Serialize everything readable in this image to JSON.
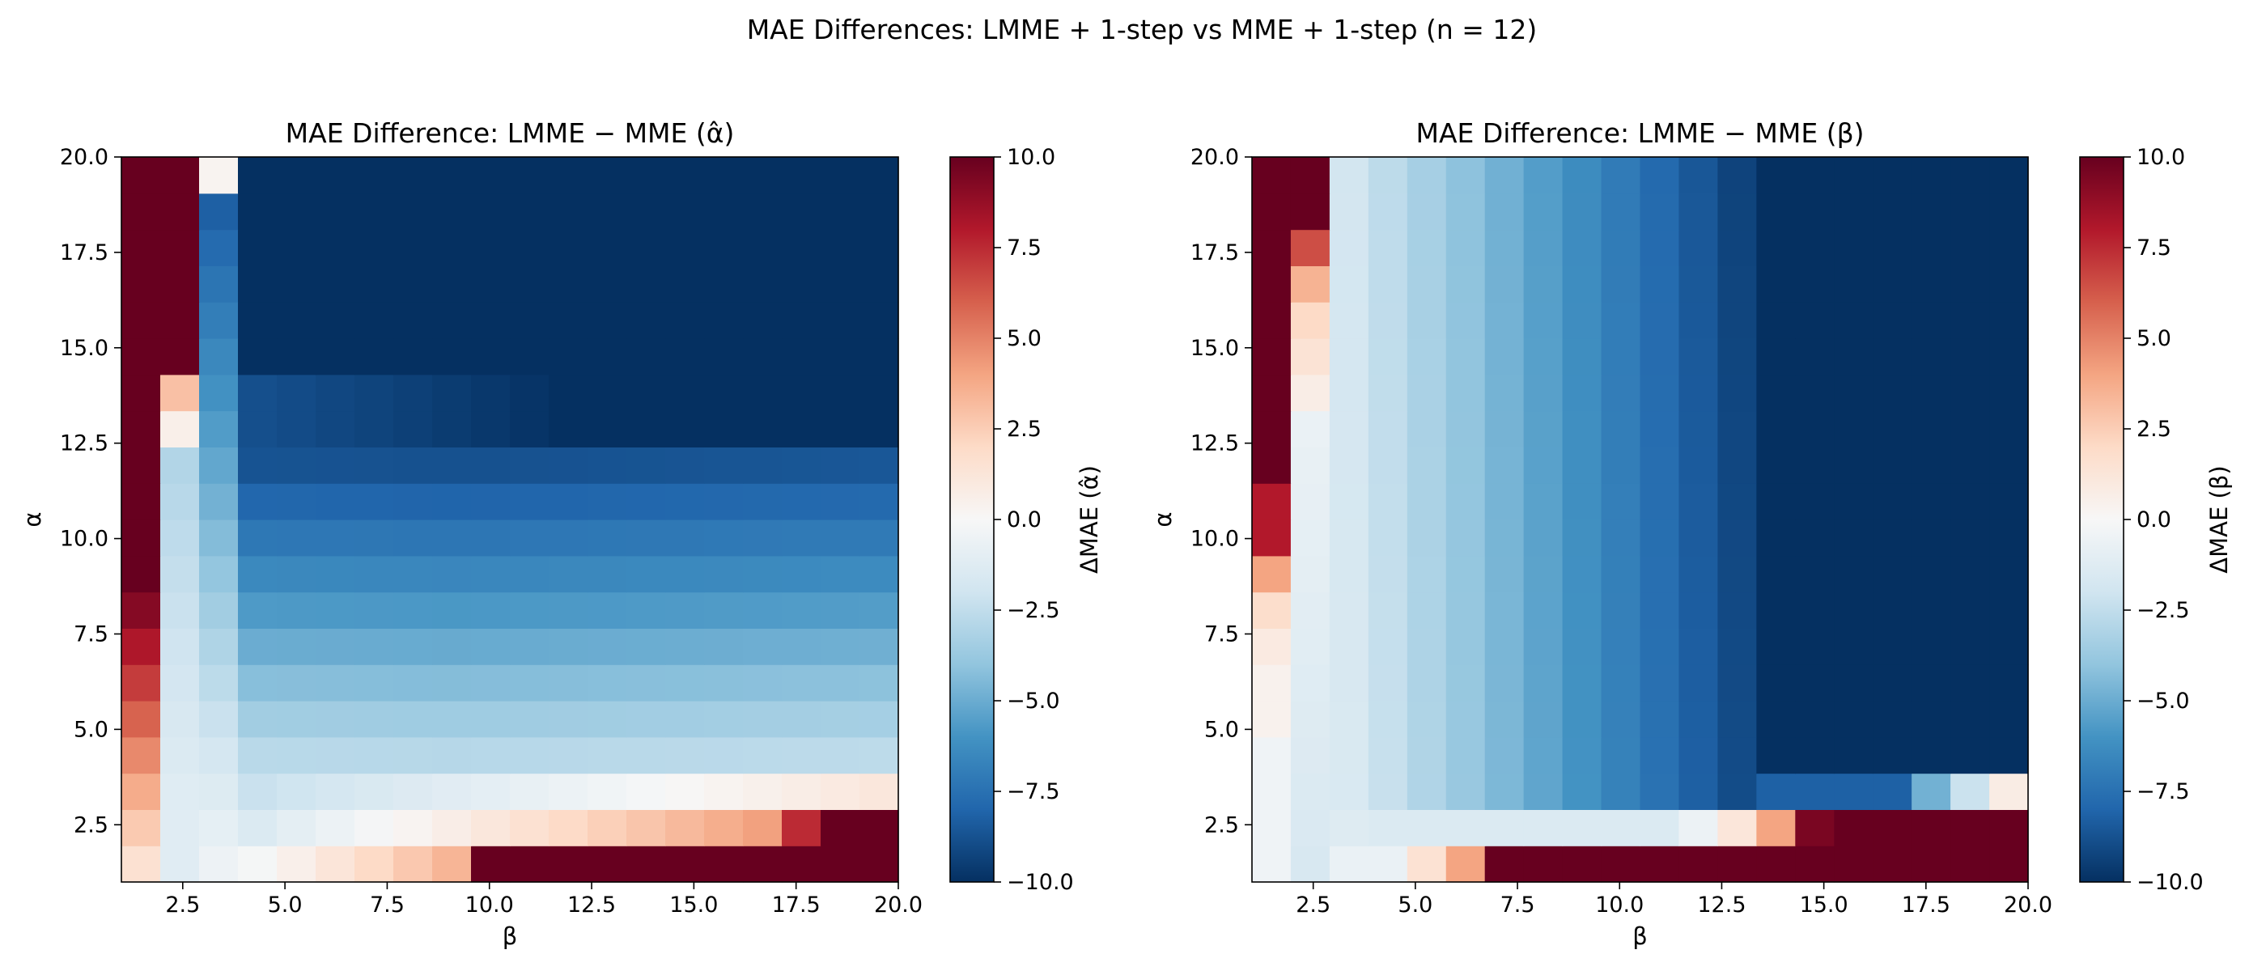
{
  "figure": {
    "title": "MAE Differences: LMME + 1-step vs MME + 1-step (n = 12)"
  },
  "chart_data": [
    {
      "type": "heatmap",
      "title": "MAE Difference: LMME − MME (α̂)",
      "xlabel": "β",
      "ylabel": "α",
      "xlim": [
        1.0,
        20.0
      ],
      "ylim": [
        1.0,
        20.0
      ],
      "x_ticks": [
        "2.5",
        "5.0",
        "7.5",
        "10.0",
        "12.5",
        "15.0",
        "17.5",
        "20.0"
      ],
      "y_ticks": [
        "2.5",
        "5.0",
        "7.5",
        "10.0",
        "12.5",
        "15.0",
        "17.5",
        "20.0"
      ],
      "grid": false,
      "grid_resolution": [
        20,
        20
      ],
      "colormap": "RdBu_r",
      "clim": [
        -10,
        10
      ],
      "colorbar_label": "ΔMAE (α̂)",
      "colorbar_ticks": [
        "10.0",
        "7.5",
        "5.0",
        "2.5",
        "0.0",
        "−2.5",
        "−5.0",
        "−7.5",
        "−10.0"
      ],
      "colors": {
        "low": "#053061",
        "mid": "#f7f7f7",
        "high": "#67001f"
      }
    },
    {
      "type": "heatmap",
      "title": "MAE Difference: LMME − MME (β)",
      "xlabel": "β",
      "ylabel": "α",
      "xlim": [
        1.0,
        20.0
      ],
      "ylim": [
        1.0,
        20.0
      ],
      "x_ticks": [
        "2.5",
        "5.0",
        "7.5",
        "10.0",
        "12.5",
        "15.0",
        "17.5",
        "20.0"
      ],
      "y_ticks": [
        "2.5",
        "5.0",
        "7.5",
        "10.0",
        "12.5",
        "15.0",
        "17.5",
        "20.0"
      ],
      "grid": false,
      "grid_resolution": [
        20,
        20
      ],
      "colormap": "RdBu_r",
      "clim": [
        -10,
        10
      ],
      "colorbar_label": "ΔMAE (β)",
      "colorbar_ticks": [
        "10.0",
        "7.5",
        "5.0",
        "2.5",
        "0.0",
        "−2.5",
        "−5.0",
        "−7.5",
        "−10.0"
      ],
      "colors": {
        "low": "#053061",
        "mid": "#f7f7f7",
        "high": "#67001f"
      }
    }
  ]
}
